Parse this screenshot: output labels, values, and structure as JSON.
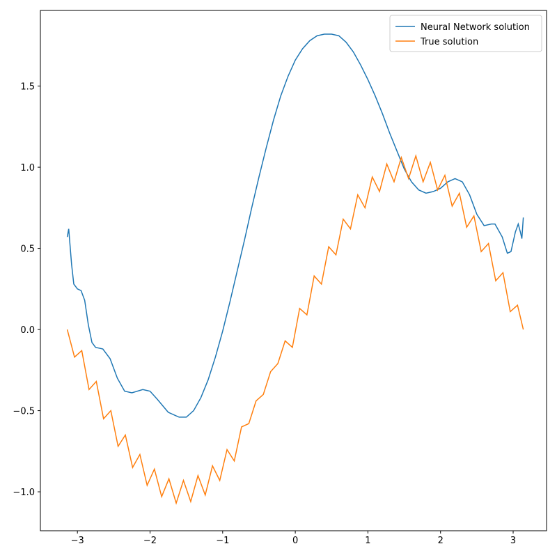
{
  "chart_data": {
    "type": "line",
    "series": [
      {
        "name": "Neural Network solution",
        "color": "#1f77b4",
        "x": [
          -3.14,
          -3.12,
          -3.08,
          -3.05,
          -3.0,
          -2.95,
          -2.9,
          -2.85,
          -2.8,
          -2.75,
          -2.65,
          -2.55,
          -2.45,
          -2.35,
          -2.25,
          -2.1,
          -2.0,
          -1.9,
          -1.75,
          -1.6,
          -1.5,
          -1.4,
          -1.3,
          -1.2,
          -1.1,
          -1.0,
          -0.9,
          -0.8,
          -0.7,
          -0.6,
          -0.5,
          -0.4,
          -0.3,
          -0.2,
          -0.1,
          0,
          0.1,
          0.2,
          0.3,
          0.4,
          0.5,
          0.6,
          0.7,
          0.8,
          0.9,
          1.0,
          1.1,
          1.2,
          1.3,
          1.4,
          1.5,
          1.6,
          1.7,
          1.8,
          1.9,
          2.0,
          2.1,
          2.2,
          2.3,
          2.4,
          2.5,
          2.6,
          2.7,
          2.75,
          2.85,
          2.92,
          2.97,
          3.03,
          3.07,
          3.1,
          3.12,
          3.14
        ],
        "values": [
          0.57,
          0.62,
          0.4,
          0.28,
          0.25,
          0.24,
          0.18,
          0.03,
          -0.08,
          -0.11,
          -0.12,
          -0.18,
          -0.3,
          -0.38,
          -0.39,
          -0.37,
          -0.38,
          -0.43,
          -0.51,
          -0.54,
          -0.54,
          -0.5,
          -0.42,
          -0.31,
          -0.17,
          -0.01,
          0.17,
          0.36,
          0.55,
          0.75,
          0.94,
          1.12,
          1.29,
          1.44,
          1.56,
          1.66,
          1.73,
          1.78,
          1.81,
          1.82,
          1.82,
          1.81,
          1.77,
          1.71,
          1.63,
          1.54,
          1.44,
          1.33,
          1.21,
          1.1,
          0.99,
          0.91,
          0.86,
          0.84,
          0.85,
          0.87,
          0.91,
          0.93,
          0.91,
          0.83,
          0.71,
          0.64,
          0.65,
          0.65,
          0.57,
          0.47,
          0.48,
          0.6,
          0.65,
          0.6,
          0.56,
          0.69
        ]
      },
      {
        "name": "True solution",
        "color": "#ff7f0e",
        "x": [
          -3.14,
          -3.04,
          -2.94,
          -2.84,
          -2.74,
          -2.64,
          -2.54,
          -2.44,
          -2.34,
          -2.24,
          -2.14,
          -2.04,
          -1.94,
          -1.84,
          -1.74,
          -1.64,
          -1.54,
          -1.44,
          -1.34,
          -1.24,
          -1.14,
          -1.04,
          -0.94,
          -0.84,
          -0.74,
          -0.64,
          -0.54,
          -0.44,
          -0.34,
          -0.24,
          -0.14,
          -0.04,
          0.06,
          0.16,
          0.26,
          0.36,
          0.46,
          0.56,
          0.66,
          0.76,
          0.86,
          0.96,
          1.06,
          1.16,
          1.26,
          1.36,
          1.46,
          1.56,
          1.66,
          1.76,
          1.86,
          1.96,
          2.06,
          2.16,
          2.26,
          2.36,
          2.46,
          2.56,
          2.66,
          2.76,
          2.86,
          2.96,
          3.06,
          3.14
        ],
        "values": [
          0.0,
          -0.17,
          -0.13,
          -0.37,
          -0.32,
          -0.55,
          -0.5,
          -0.72,
          -0.65,
          -0.85,
          -0.77,
          -0.96,
          -0.86,
          -1.03,
          -0.92,
          -1.07,
          -0.93,
          -1.06,
          -0.9,
          -1.02,
          -0.84,
          -0.93,
          -0.74,
          -0.81,
          -0.6,
          -0.58,
          -0.44,
          -0.4,
          -0.26,
          -0.21,
          -0.07,
          -0.11,
          0.13,
          0.09,
          0.33,
          0.28,
          0.51,
          0.46,
          0.68,
          0.62,
          0.83,
          0.75,
          0.94,
          0.85,
          1.02,
          0.91,
          1.06,
          0.93,
          1.07,
          0.91,
          1.03,
          0.86,
          0.95,
          0.76,
          0.84,
          0.63,
          0.7,
          0.48,
          0.53,
          0.3,
          0.35,
          0.11,
          0.15,
          0.0
        ]
      }
    ],
    "xlim": [
      -3.51,
      3.46
    ],
    "ylim": [
      -1.24,
      1.966
    ],
    "xticks": [
      {
        "value": -3,
        "label": "−3"
      },
      {
        "value": -2,
        "label": "−2"
      },
      {
        "value": -1,
        "label": "−1"
      },
      {
        "value": 0,
        "label": "0"
      },
      {
        "value": 1,
        "label": "1"
      },
      {
        "value": 2,
        "label": "2"
      },
      {
        "value": 3,
        "label": "3"
      }
    ],
    "yticks": [
      {
        "value": -1.0,
        "label": "−1.0"
      },
      {
        "value": -0.5,
        "label": "−0.5"
      },
      {
        "value": 0.0,
        "label": "0.0"
      },
      {
        "value": 0.5,
        "label": "0.5"
      },
      {
        "value": 1.0,
        "label": "1.0"
      },
      {
        "value": 1.5,
        "label": "1.5"
      }
    ],
    "grid": false,
    "legend": "upper right"
  }
}
